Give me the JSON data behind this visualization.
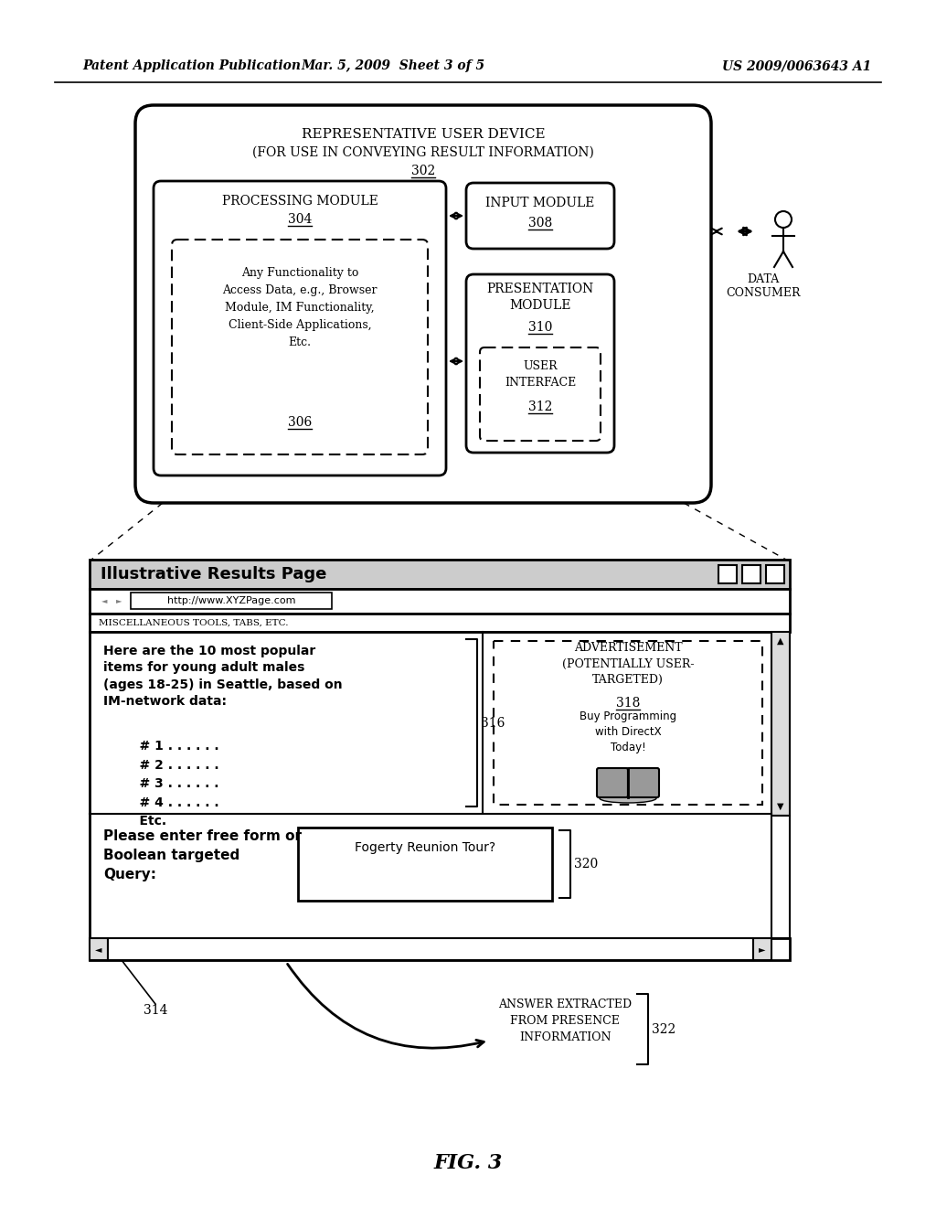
{
  "bg_color": "#ffffff",
  "header_text1": "Patent Application Publication",
  "header_text2": "Mar. 5, 2009  Sheet 3 of 5",
  "header_text3": "US 2009/0063643 A1",
  "fig_label": "FIG. 3",
  "title1": "Representative User Device",
  "title2": "(For Use in Conveying Result Information)",
  "title2_num": "302",
  "proc_module": "Processing Module",
  "proc_num": "304",
  "func_text": "Any Functionality to\nAccess Data, e.g., Browser\nModule, IM Functionality,\nClient-Side Applications,\nEtc.",
  "func_num": "306",
  "input_module": "Input Module",
  "input_num": "308",
  "pres_module": "Presentation\nModule",
  "pres_num": "310",
  "ui_text": "User\nInterface",
  "ui_num": "312",
  "data_consumer": "Data\nConsumer",
  "browser_title": "Illustrative Results Page",
  "url": "http://www.XYZPage.com",
  "misc_tools": "Miscellaneous Tools, Tabs, Etc.",
  "content_text_bold": "Here are the 10 most popular\nitems for young adult males\n(ages 18-25) in Seattle, based on\nIM-network data:",
  "content_items": "    # 1 . . . . . .\n    # 2 . . . . . .\n    # 3 . . . . . .\n    # 4 . . . . . .\n    Etc.",
  "ref316": "316",
  "ad_text": "Advertisement\n(Potentially User-\nTargeted)",
  "ad_num": "318",
  "ad_book": "Buy Programming\nwith DirectX\nToday!",
  "query_text": "Please enter free form or\nBoolean targeted\nQuery:",
  "query_box_text": "Fogerty Reunion Tour?",
  "ref320": "320",
  "ref314": "314",
  "answer_text": "Answer Extracted\nFrom Presence\nInformation",
  "ref322": "322"
}
